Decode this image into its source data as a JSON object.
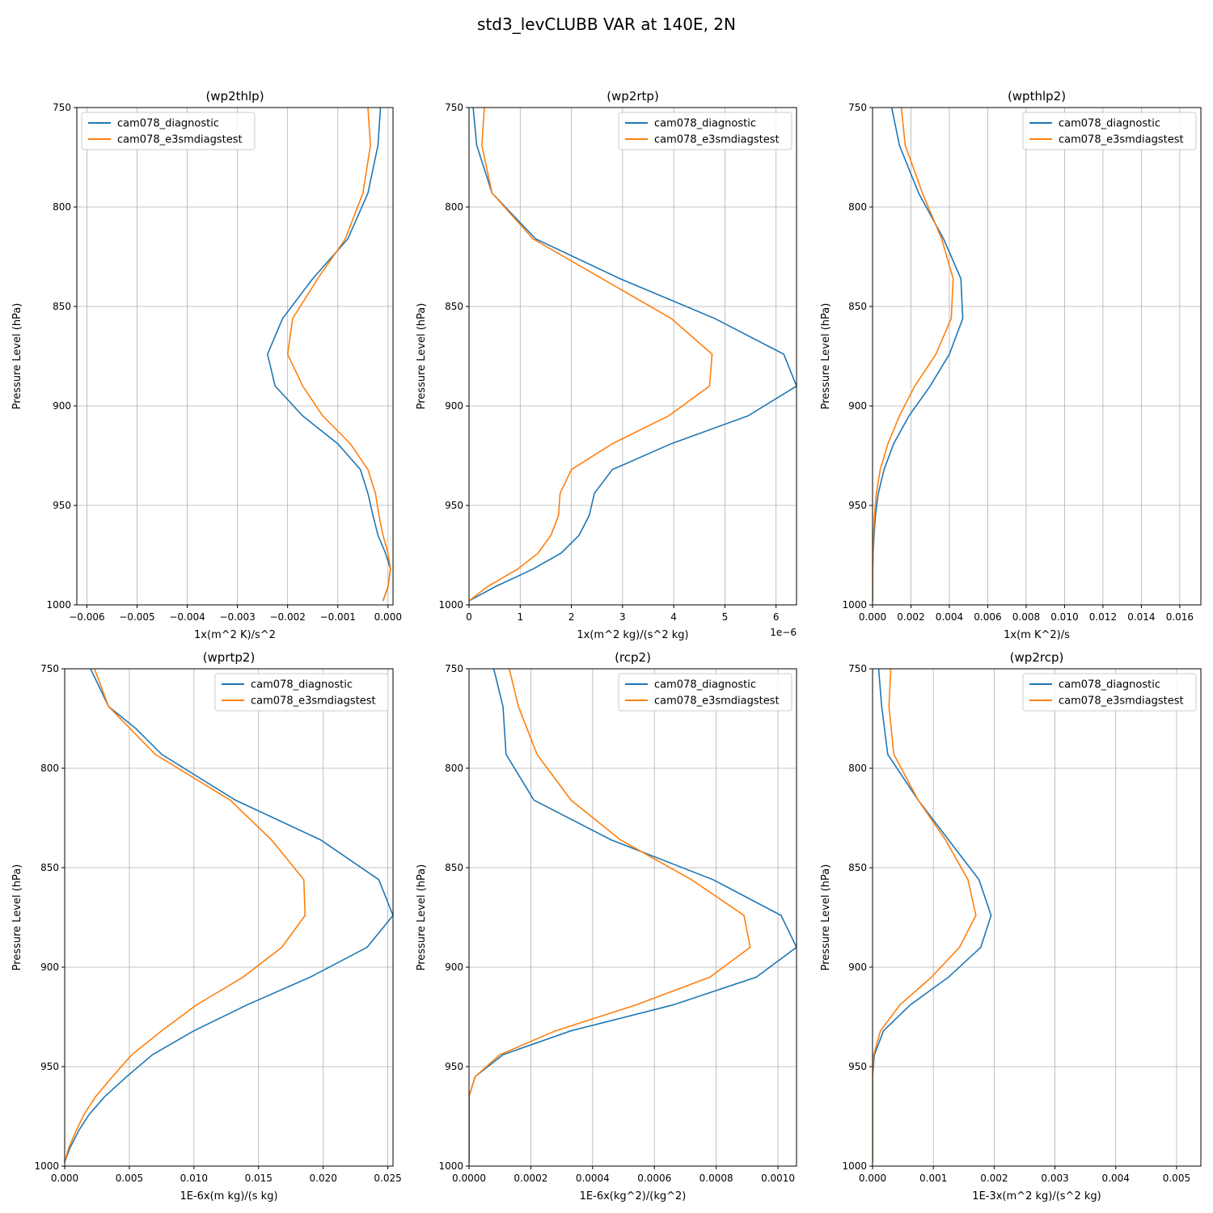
{
  "figure": {
    "title": "std3_levCLUBB VAR at 140E, 2N"
  },
  "colors": {
    "diagnostic": "#1f77b4",
    "e3smdiagstest": "#ff7f0e",
    "grid": "#b0b0b0"
  },
  "chart_data": [
    {
      "type": "line",
      "title": "(wp2thlp)",
      "xlabel": "1x(m^2 K)/s^2",
      "ylabel": "Pressure Level (hPa)",
      "xlim": [
        -0.0062,
        0.0001
      ],
      "ylim": [
        1000,
        750
      ],
      "xticks": [
        -0.006,
        -0.005,
        -0.004,
        -0.003,
        -0.002,
        -0.001,
        0.0
      ],
      "xtick_labels": [
        "−0.006",
        "−0.005",
        "−0.004",
        "−0.003",
        "−0.002",
        "−0.001",
        "0.000"
      ],
      "yticks": [
        750,
        800,
        850,
        900,
        950,
        1000
      ],
      "ytick_labels": [
        "750",
        "800",
        "850",
        "900",
        "950",
        "1000"
      ],
      "offset_label": "",
      "legend": "upper-left",
      "grid": true,
      "series": [
        {
          "name": "cam078_diagnostic",
          "color": "#1f77b4",
          "p": [
            750,
            769,
            793,
            816,
            836,
            856,
            874,
            890,
            905,
            919,
            932,
            944,
            955,
            965,
            974,
            982,
            991,
            998
          ],
          "values": [
            -0.00015,
            -0.0002,
            -0.0004,
            -0.0008,
            -0.0015,
            -0.0021,
            -0.0024,
            -0.00225,
            -0.0017,
            -0.001,
            -0.00055,
            -0.0004,
            -0.0003,
            -0.0002,
            -5e-05,
            5e-05,
            0.0,
            -0.0001
          ]
        },
        {
          "name": "cam078_e3smdiagstest",
          "color": "#ff7f0e",
          "p": [
            750,
            769,
            793,
            816,
            836,
            856,
            874,
            890,
            905,
            919,
            932,
            944,
            955,
            965,
            974,
            982,
            991,
            998
          ],
          "values": [
            -0.0004,
            -0.00035,
            -0.0005,
            -0.00085,
            -0.0014,
            -0.0019,
            -0.002,
            -0.0017,
            -0.0013,
            -0.00075,
            -0.0004,
            -0.00025,
            -0.00018,
            -0.0001,
            0.0,
            5e-05,
            0.0,
            -0.0001
          ]
        }
      ]
    },
    {
      "type": "line",
      "title": "(wp2rtp)",
      "xlabel": "1x(m^2 kg)/(s^2 kg)",
      "ylabel": "Pressure Level (hPa)",
      "xlim": [
        0,
        6.4
      ],
      "ylim": [
        1000,
        750
      ],
      "xticks": [
        0,
        1,
        2,
        3,
        4,
        5,
        6
      ],
      "xtick_labels": [
        "0",
        "1",
        "2",
        "3",
        "4",
        "5",
        "6"
      ],
      "yticks": [
        750,
        800,
        850,
        900,
        950,
        1000
      ],
      "ytick_labels": [
        "750",
        "800",
        "850",
        "900",
        "950",
        "1000"
      ],
      "offset_label": "1e−6",
      "legend": "upper-right",
      "grid": true,
      "series": [
        {
          "name": "cam078_diagnostic",
          "color": "#1f77b4",
          "p": [
            750,
            769,
            793,
            816,
            836,
            856,
            874,
            890,
            905,
            919,
            932,
            944,
            955,
            965,
            974,
            982,
            991,
            998
          ],
          "values": [
            0.08,
            0.15,
            0.45,
            1.3,
            2.95,
            4.8,
            6.15,
            6.4,
            5.45,
            3.95,
            2.8,
            2.45,
            2.35,
            2.15,
            1.8,
            1.25,
            0.5,
            0.0
          ]
        },
        {
          "name": "cam078_e3smdiagstest",
          "color": "#ff7f0e",
          "p": [
            750,
            769,
            793,
            816,
            836,
            856,
            874,
            890,
            905,
            919,
            932,
            944,
            955,
            965,
            974,
            982,
            991,
            998
          ],
          "values": [
            0.3,
            0.25,
            0.45,
            1.25,
            2.6,
            3.95,
            4.75,
            4.7,
            3.9,
            2.8,
            2.0,
            1.78,
            1.75,
            1.6,
            1.35,
            0.95,
            0.35,
            0.0
          ]
        }
      ]
    },
    {
      "type": "line",
      "title": "(wpthlp2)",
      "xlabel": "1x(m K^2)/s",
      "ylabel": "Pressure Level (hPa)",
      "xlim": [
        0,
        0.0171
      ],
      "ylim": [
        1000,
        750
      ],
      "xticks": [
        0.0,
        0.002,
        0.004,
        0.006,
        0.008,
        0.01,
        0.012,
        0.014,
        0.016
      ],
      "xtick_labels": [
        "0.000",
        "0.002",
        "0.004",
        "0.006",
        "0.008",
        "0.010",
        "0.012",
        "0.014",
        "0.016"
      ],
      "yticks": [
        750,
        800,
        850,
        900,
        950,
        1000
      ],
      "ytick_labels": [
        "750",
        "800",
        "850",
        "900",
        "950",
        "1000"
      ],
      "offset_label": "",
      "legend": "upper-right",
      "grid": true,
      "series": [
        {
          "name": "cam078_diagnostic",
          "color": "#1f77b4",
          "p": [
            750,
            769,
            793,
            816,
            836,
            856,
            874,
            890,
            905,
            919,
            932,
            944,
            955,
            965,
            974,
            982,
            991,
            998
          ],
          "values": [
            0.001,
            0.0014,
            0.0024,
            0.0037,
            0.0046,
            0.0047,
            0.004,
            0.003,
            0.0019,
            0.0011,
            0.0006,
            0.0003,
            0.00015,
            8e-05,
            3e-05,
            1e-05,
            0.0,
            0.0
          ]
        },
        {
          "name": "cam078_e3smdiagstest",
          "color": "#ff7f0e",
          "p": [
            750,
            769,
            793,
            816,
            836,
            856,
            874,
            890,
            905,
            919,
            932,
            944,
            955,
            965,
            974,
            982,
            991,
            998
          ],
          "values": [
            0.0015,
            0.0017,
            0.0026,
            0.0036,
            0.0042,
            0.0041,
            0.0033,
            0.0022,
            0.0014,
            0.0008,
            0.0004,
            0.0002,
            0.0001,
            5e-05,
            2e-05,
            1e-05,
            0.0,
            0.0
          ]
        }
      ]
    },
    {
      "type": "line",
      "title": "(wprtp2)",
      "xlabel": "1E-6x(m kg)/(s kg)",
      "ylabel": "Pressure Level (hPa)",
      "xlim": [
        0,
        0.0254
      ],
      "ylim": [
        1000,
        750
      ],
      "xticks": [
        0.0,
        0.005,
        0.01,
        0.015,
        0.02,
        0.025
      ],
      "xtick_labels": [
        "0.000",
        "0.005",
        "0.010",
        "0.015",
        "0.020",
        "0.025"
      ],
      "yticks": [
        750,
        800,
        850,
        900,
        950,
        1000
      ],
      "ytick_labels": [
        "750",
        "800",
        "850",
        "900",
        "950",
        "1000"
      ],
      "offset_label": "",
      "legend": "upper-right",
      "grid": true,
      "series": [
        {
          "name": "cam078_diagnostic",
          "color": "#1f77b4",
          "p": [
            750,
            769,
            780,
            793,
            816,
            836,
            856,
            874,
            890,
            905,
            919,
            932,
            944,
            955,
            965,
            974,
            982,
            991,
            998
          ],
          "values": [
            0.002,
            0.0034,
            0.0055,
            0.0075,
            0.0132,
            0.0198,
            0.0243,
            0.0254,
            0.0234,
            0.019,
            0.0141,
            0.01,
            0.0068,
            0.0048,
            0.0031,
            0.0019,
            0.0011,
            0.0004,
            0.0
          ]
        },
        {
          "name": "cam078_e3smdiagstest",
          "color": "#ff7f0e",
          "p": [
            750,
            769,
            793,
            816,
            836,
            856,
            874,
            890,
            905,
            919,
            932,
            944,
            955,
            965,
            974,
            982,
            991,
            998
          ],
          "values": [
            0.0023,
            0.0034,
            0.007,
            0.0128,
            0.016,
            0.0185,
            0.0186,
            0.0168,
            0.0138,
            0.0102,
            0.0075,
            0.0052,
            0.0037,
            0.0024,
            0.0015,
            0.0009,
            0.0003,
            0.0
          ]
        }
      ]
    },
    {
      "type": "line",
      "title": "(rcp2)",
      "xlabel": "1E-6x(kg^2)/(kg^2)",
      "ylabel": "Pressure Level (hPa)",
      "xlim": [
        0,
        0.00106
      ],
      "ylim": [
        1000,
        750
      ],
      "xticks": [
        0.0,
        0.0002,
        0.0004,
        0.0006,
        0.0008,
        0.001
      ],
      "xtick_labels": [
        "0.0000",
        "0.0002",
        "0.0004",
        "0.0006",
        "0.0008",
        "0.0010"
      ],
      "yticks": [
        750,
        800,
        850,
        900,
        950,
        1000
      ],
      "ytick_labels": [
        "750",
        "800",
        "850",
        "900",
        "950",
        "1000"
      ],
      "offset_label": "",
      "legend": "upper-right",
      "grid": true,
      "series": [
        {
          "name": "cam078_diagnostic",
          "color": "#1f77b4",
          "p": [
            750,
            769,
            793,
            816,
            836,
            856,
            874,
            890,
            905,
            919,
            932,
            944,
            955,
            965,
            974,
            982,
            991,
            998
          ],
          "values": [
            8e-05,
            0.00011,
            0.00012,
            0.00021,
            0.00046,
            0.00079,
            0.00101,
            0.00106,
            0.00093,
            0.00066,
            0.00033,
            0.00011,
            2e-05,
            0.0,
            0.0,
            0.0,
            0.0,
            0.0
          ]
        },
        {
          "name": "cam078_e3smdiagstest",
          "color": "#ff7f0e",
          "p": [
            750,
            769,
            793,
            816,
            836,
            856,
            874,
            890,
            905,
            919,
            932,
            944,
            955,
            965,
            974,
            982,
            991,
            998
          ],
          "values": [
            0.00013,
            0.00016,
            0.00022,
            0.00033,
            0.00049,
            0.00072,
            0.00089,
            0.00091,
            0.00078,
            0.00054,
            0.00028,
            0.0001,
            2e-05,
            0.0,
            0.0,
            0.0,
            0.0,
            0.0
          ]
        }
      ]
    },
    {
      "type": "line",
      "title": "(wp2rcp)",
      "xlabel": "1E-3x(m^2 kg)/(s^2 kg)",
      "ylabel": "Pressure Level (hPa)",
      "xlim": [
        0,
        0.0054
      ],
      "ylim": [
        1000,
        750
      ],
      "xticks": [
        0.0,
        0.001,
        0.002,
        0.003,
        0.004,
        0.005
      ],
      "xtick_labels": [
        "0.000",
        "0.001",
        "0.002",
        "0.003",
        "0.004",
        "0.005"
      ],
      "yticks": [
        750,
        800,
        850,
        900,
        950,
        1000
      ],
      "ytick_labels": [
        "750",
        "800",
        "850",
        "900",
        "950",
        "1000"
      ],
      "offset_label": "",
      "legend": "upper-right",
      "grid": true,
      "series": [
        {
          "name": "cam078_diagnostic",
          "color": "#1f77b4",
          "p": [
            750,
            769,
            793,
            816,
            836,
            856,
            874,
            890,
            905,
            919,
            932,
            944,
            955,
            965,
            974,
            982,
            991,
            998
          ],
          "values": [
            0.0001,
            0.00015,
            0.00025,
            0.00075,
            0.00125,
            0.00175,
            0.00195,
            0.00178,
            0.00125,
            0.00062,
            0.00018,
            3e-05,
            0.0,
            0.0,
            0.0,
            0.0,
            0.0,
            0.0
          ]
        },
        {
          "name": "cam078_e3smdiagstest",
          "color": "#ff7f0e",
          "p": [
            750,
            769,
            793,
            816,
            836,
            856,
            874,
            890,
            905,
            919,
            932,
            944,
            955,
            965,
            974,
            982,
            991,
            998
          ],
          "values": [
            0.0003,
            0.00027,
            0.00035,
            0.00075,
            0.0012,
            0.00157,
            0.0017,
            0.00143,
            0.00097,
            0.00045,
            0.00013,
            2e-05,
            0.0,
            0.0,
            0.0,
            0.0,
            0.0,
            0.0
          ]
        }
      ]
    }
  ]
}
